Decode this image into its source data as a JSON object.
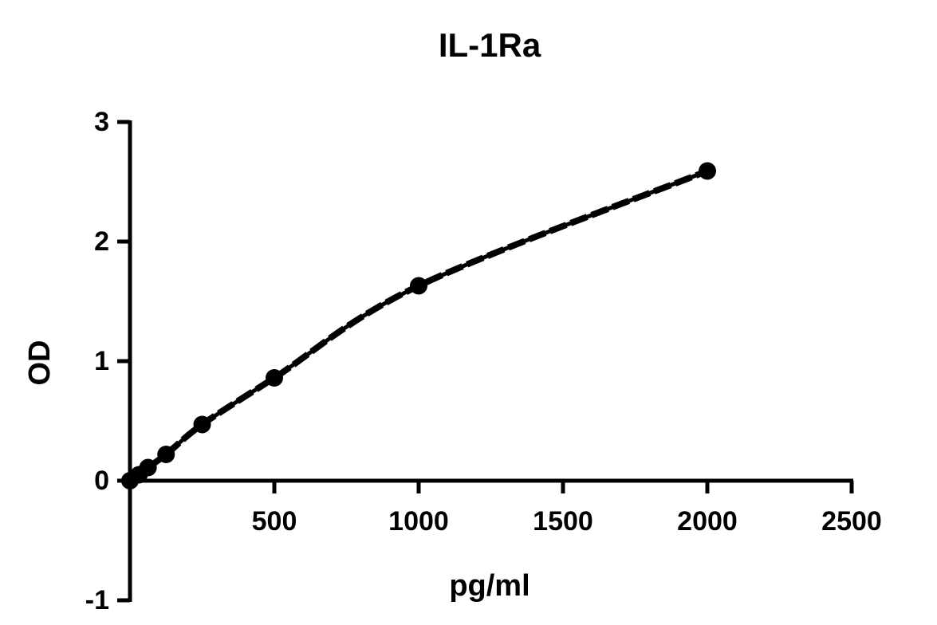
{
  "chart_data": {
    "type": "line",
    "title": "IL-1Ra",
    "x_label": "pg/ml",
    "y_label": "OD",
    "x": [
      0,
      31.25,
      62.5,
      125,
      250,
      500,
      1000,
      2000
    ],
    "series": [
      {
        "color": "#000000",
        "values": [
          0.0,
          0.05,
          0.11,
          0.22,
          0.47,
          0.86,
          1.63,
          2.59
        ]
      }
    ],
    "xlim": [
      0,
      2500
    ],
    "xticks": [
      500,
      1000,
      1500,
      2000,
      2500
    ],
    "ylim": [
      -1,
      3
    ],
    "yticks": [
      -1,
      0,
      1,
      2,
      3
    ],
    "grid": false
  }
}
